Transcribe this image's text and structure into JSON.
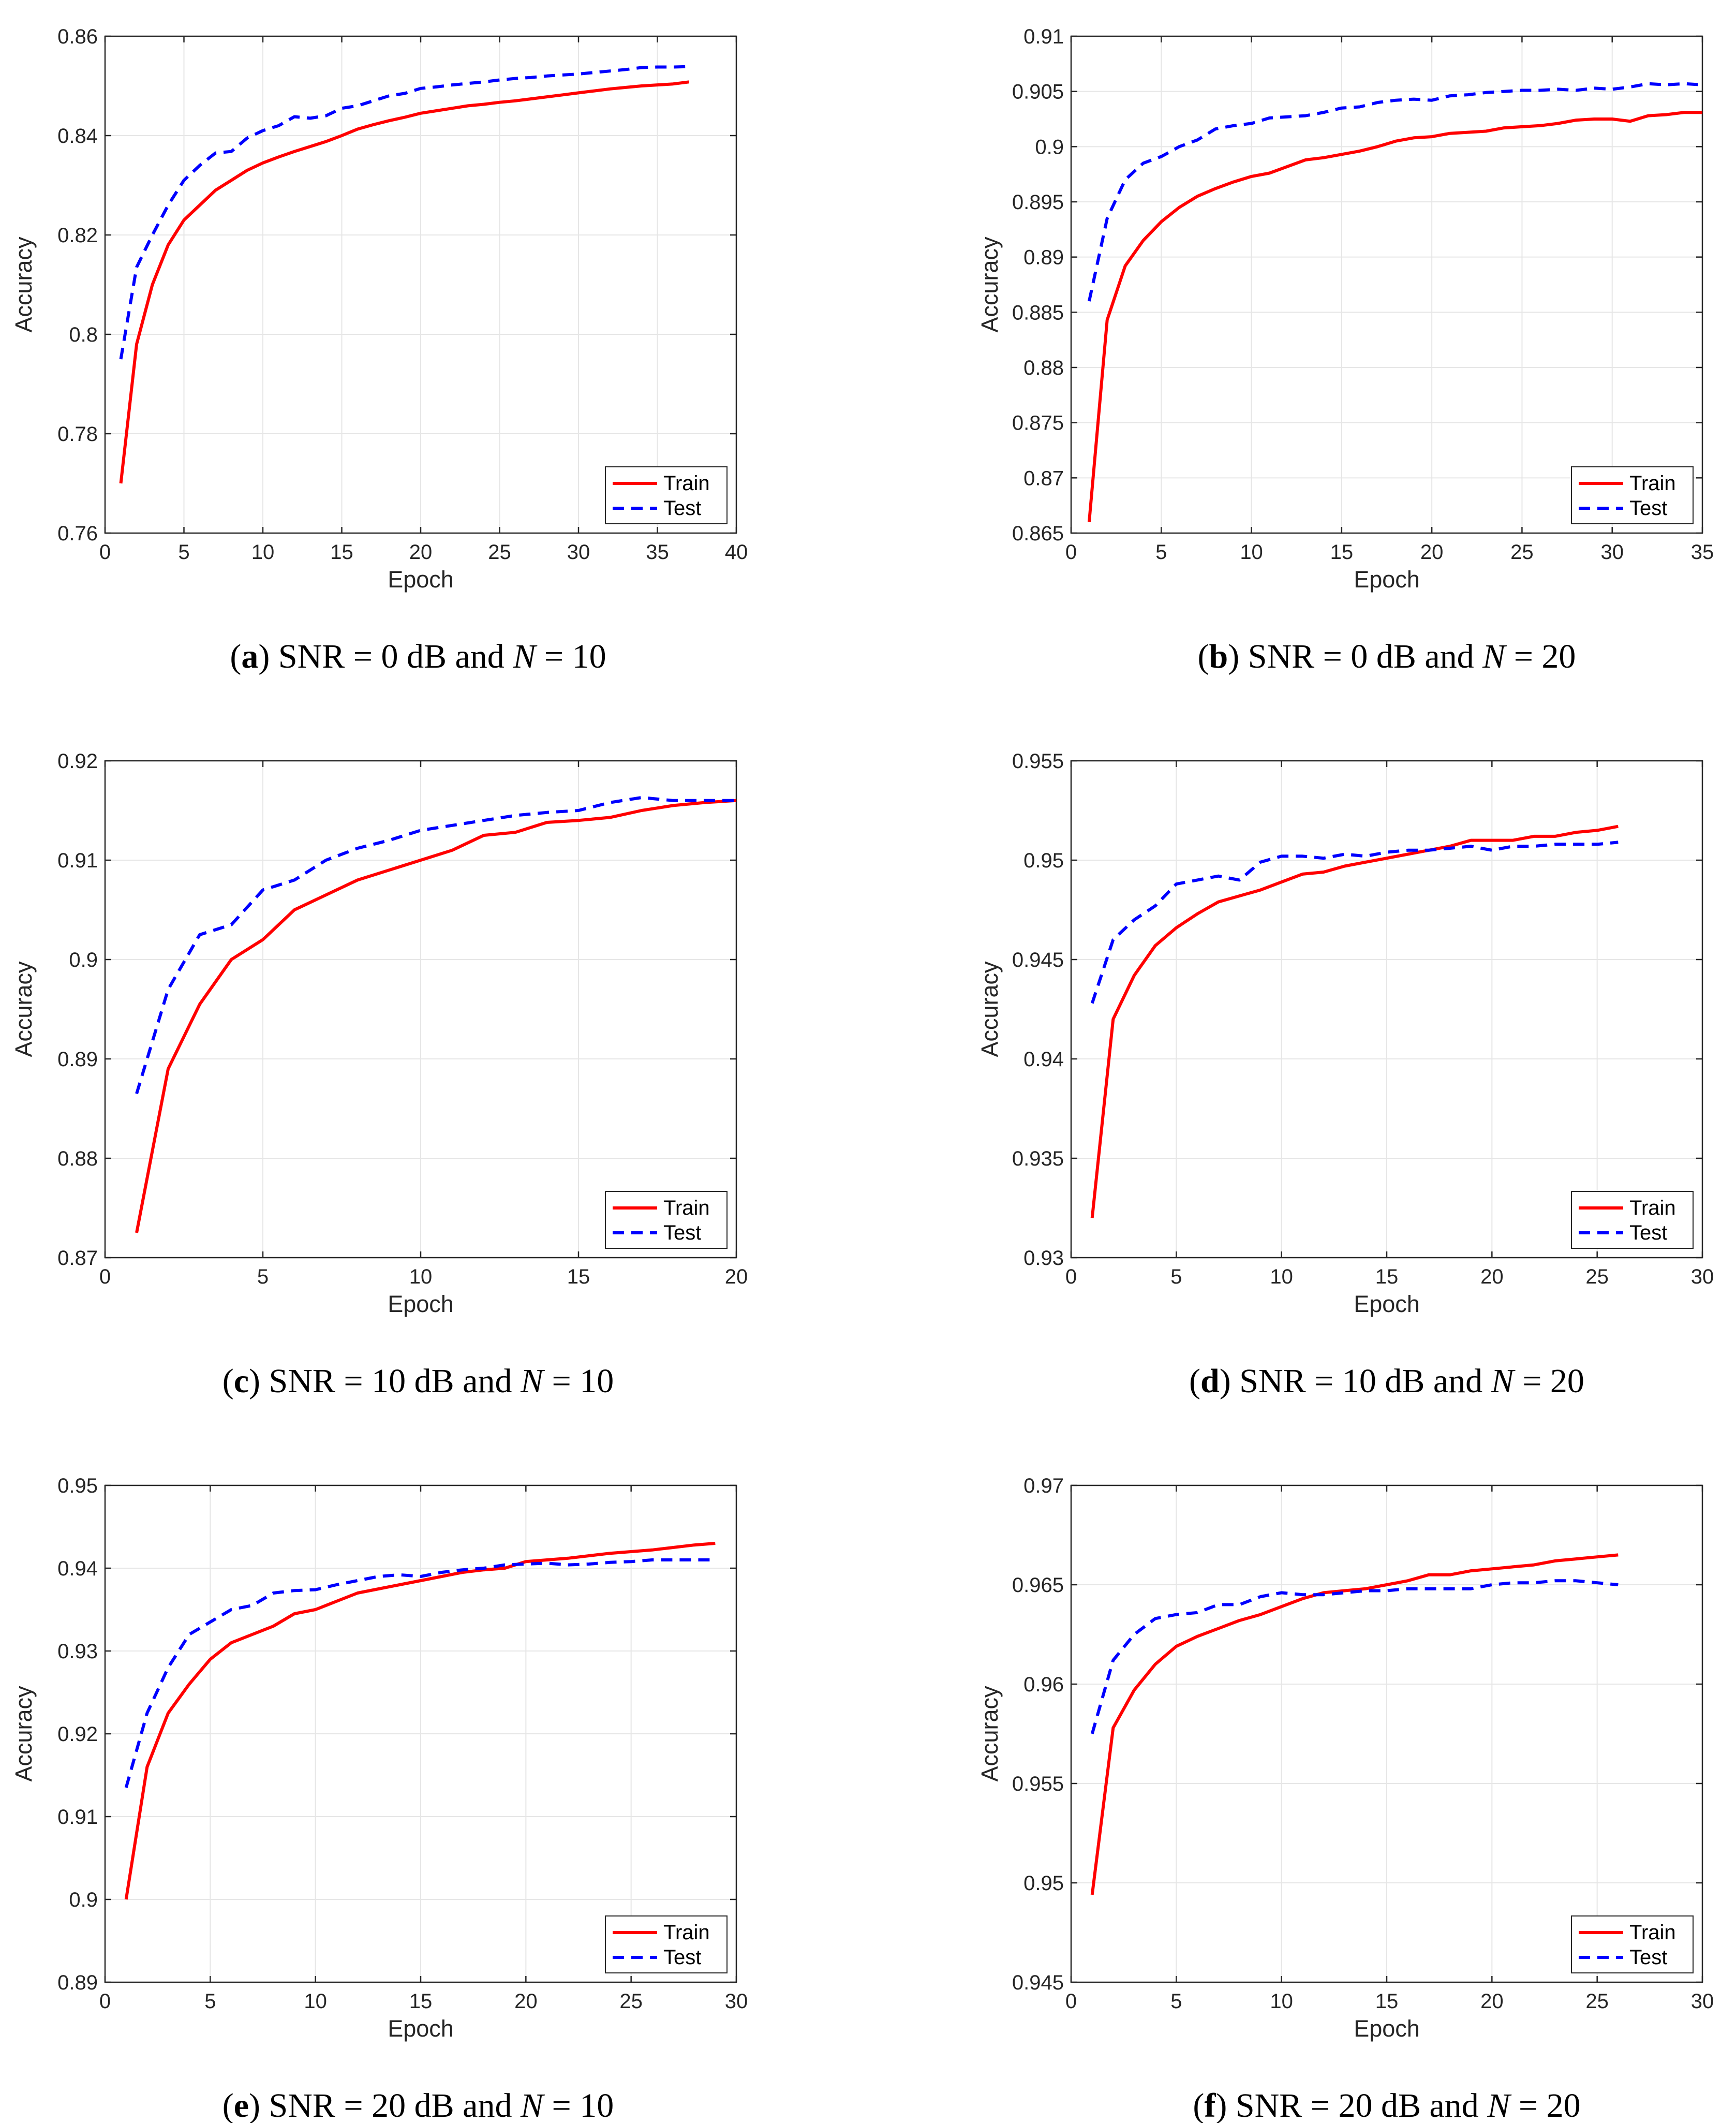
{
  "legend": {
    "train": "Train",
    "test": "Test"
  },
  "colors": {
    "train": "#ff0000",
    "test": "#0000ff"
  },
  "chart_data": [
    {
      "type": "line",
      "caption": {
        "letter": "a",
        "prefix": "SNR = 0 dB and ",
        "var": "N",
        "suffix": " = 10"
      },
      "xlabel": "Epoch",
      "ylabel": "Accuracy",
      "xlim": [
        0,
        40
      ],
      "ylim": [
        0.76,
        0.86
      ],
      "xticks": [
        0,
        5,
        10,
        15,
        20,
        25,
        30,
        35,
        40
      ],
      "yticks": [
        0.76,
        0.78,
        0.8,
        0.82,
        0.84,
        0.86
      ],
      "yticklabels": [
        "0.76",
        "0.78",
        "0.8",
        "0.82",
        "0.84",
        "0.86"
      ],
      "grid": true,
      "legend_position": "bottom-right",
      "series": [
        {
          "name": "Train",
          "x": [
            1,
            2,
            3,
            4,
            5,
            6,
            7,
            8,
            9,
            10,
            11,
            12,
            13,
            14,
            15,
            16,
            17,
            18,
            19,
            20,
            21,
            22,
            23,
            24,
            25,
            26,
            27,
            28,
            29,
            30,
            31,
            32,
            33,
            34,
            35,
            36,
            37
          ],
          "values": [
            0.77,
            0.798,
            0.81,
            0.818,
            0.823,
            0.826,
            0.829,
            0.831,
            0.833,
            0.8345,
            0.8357,
            0.8368,
            0.8378,
            0.8388,
            0.84,
            0.8413,
            0.8422,
            0.843,
            0.8437,
            0.8445,
            0.845,
            0.8455,
            0.846,
            0.8463,
            0.8467,
            0.847,
            0.8474,
            0.8478,
            0.8482,
            0.8486,
            0.849,
            0.8494,
            0.8497,
            0.85,
            0.8502,
            0.8504,
            0.8508
          ]
        },
        {
          "name": "Test",
          "x": [
            1,
            2,
            3,
            4,
            5,
            6,
            7,
            8,
            9,
            10,
            11,
            12,
            13,
            14,
            15,
            16,
            17,
            18,
            19,
            20,
            21,
            22,
            23,
            24,
            25,
            26,
            27,
            28,
            29,
            30,
            31,
            32,
            33,
            34,
            35,
            36,
            37
          ],
          "values": [
            0.795,
            0.8135,
            0.82,
            0.826,
            0.831,
            0.834,
            0.8365,
            0.8368,
            0.8395,
            0.841,
            0.842,
            0.8438,
            0.8435,
            0.844,
            0.8455,
            0.846,
            0.847,
            0.848,
            0.8485,
            0.8495,
            0.8498,
            0.8502,
            0.8505,
            0.8508,
            0.8512,
            0.8515,
            0.8517,
            0.852,
            0.8522,
            0.8524,
            0.8527,
            0.853,
            0.8533,
            0.8537,
            0.8538,
            0.8538,
            0.8539
          ]
        }
      ]
    },
    {
      "type": "line",
      "caption": {
        "letter": "b",
        "prefix": "SNR = 0 dB and ",
        "var": "N",
        "suffix": " = 20"
      },
      "xlabel": "Epoch",
      "ylabel": "Accuracy",
      "xlim": [
        0,
        35
      ],
      "ylim": [
        0.865,
        0.91
      ],
      "xticks": [
        0,
        5,
        10,
        15,
        20,
        25,
        30,
        35
      ],
      "yticks": [
        0.865,
        0.87,
        0.875,
        0.88,
        0.885,
        0.89,
        0.895,
        0.9,
        0.905,
        0.91
      ],
      "yticklabels": [
        "0.865",
        "0.87",
        "0.875",
        "0.88",
        "0.885",
        "0.89",
        "0.895",
        "0.9",
        "0.905",
        "0.91"
      ],
      "grid": true,
      "legend_position": "bottom-right",
      "series": [
        {
          "name": "Train",
          "x": [
            1,
            2,
            3,
            4,
            5,
            6,
            7,
            8,
            9,
            10,
            11,
            12,
            13,
            14,
            15,
            16,
            17,
            18,
            19,
            20,
            21,
            22,
            23,
            24,
            25,
            26,
            27,
            28,
            29,
            30,
            31,
            32,
            33,
            34,
            35
          ],
          "values": [
            0.866,
            0.8843,
            0.8892,
            0.8915,
            0.8932,
            0.8945,
            0.8955,
            0.8962,
            0.8968,
            0.8973,
            0.8976,
            0.8982,
            0.8988,
            0.899,
            0.8993,
            0.8996,
            0.9,
            0.9005,
            0.9008,
            0.9009,
            0.9012,
            0.9013,
            0.9014,
            0.9017,
            0.9018,
            0.9019,
            0.9021,
            0.9024,
            0.9025,
            0.9025,
            0.9023,
            0.9028,
            0.9029,
            0.9031,
            0.9031
          ]
        },
        {
          "name": "Test",
          "x": [
            1,
            2,
            3,
            4,
            5,
            6,
            7,
            8,
            9,
            10,
            11,
            12,
            13,
            14,
            15,
            16,
            17,
            18,
            19,
            20,
            21,
            22,
            23,
            24,
            25,
            26,
            27,
            28,
            29,
            30,
            31,
            32,
            33,
            34,
            35
          ],
          "values": [
            0.886,
            0.8935,
            0.897,
            0.8985,
            0.8991,
            0.9,
            0.9006,
            0.9016,
            0.9019,
            0.9021,
            0.9026,
            0.9027,
            0.9028,
            0.9031,
            0.9035,
            0.9036,
            0.904,
            0.9042,
            0.9043,
            0.9042,
            0.9046,
            0.9047,
            0.9049,
            0.905,
            0.9051,
            0.9051,
            0.9052,
            0.9051,
            0.9053,
            0.9052,
            0.9054,
            0.9057,
            0.9056,
            0.9057,
            0.9056
          ]
        }
      ]
    },
    {
      "type": "line",
      "caption": {
        "letter": "c",
        "prefix": "SNR = 10 dB and ",
        "var": "N",
        "suffix": " = 10"
      },
      "xlabel": "Epoch",
      "ylabel": "Accuracy",
      "xlim": [
        0,
        20
      ],
      "ylim": [
        0.87,
        0.92
      ],
      "xticks": [
        0,
        5,
        10,
        15,
        20
      ],
      "yticks": [
        0.87,
        0.88,
        0.89,
        0.9,
        0.91,
        0.92
      ],
      "yticklabels": [
        "0.87",
        "0.88",
        "0.89",
        "0.9",
        "0.91",
        "0.92"
      ],
      "grid": true,
      "legend_position": "bottom-right",
      "series": [
        {
          "name": "Train",
          "x": [
            1,
            2,
            3,
            4,
            5,
            6,
            7,
            8,
            9,
            10,
            11,
            12,
            13,
            14,
            15,
            16,
            17,
            18,
            19,
            20
          ],
          "values": [
            0.8725,
            0.889,
            0.8955,
            0.9,
            0.902,
            0.905,
            0.9065,
            0.908,
            0.909,
            0.91,
            0.911,
            0.9125,
            0.9128,
            0.9138,
            0.914,
            0.9143,
            0.915,
            0.9155,
            0.9158,
            0.916
          ]
        },
        {
          "name": "Test",
          "x": [
            1,
            2,
            3,
            4,
            5,
            6,
            7,
            8,
            9,
            10,
            11,
            12,
            13,
            14,
            15,
            16,
            17,
            18,
            19,
            20
          ],
          "values": [
            0.8865,
            0.897,
            0.9025,
            0.9035,
            0.907,
            0.908,
            0.91,
            0.9112,
            0.912,
            0.913,
            0.9135,
            0.914,
            0.9145,
            0.9148,
            0.915,
            0.9158,
            0.9163,
            0.916,
            0.916,
            0.916
          ]
        }
      ]
    },
    {
      "type": "line",
      "caption": {
        "letter": "d",
        "prefix": "SNR = 10 dB and ",
        "var": "N",
        "suffix": " = 20"
      },
      "xlabel": "Epoch",
      "ylabel": "Accuracy",
      "xlim": [
        0,
        30
      ],
      "ylim": [
        0.93,
        0.955
      ],
      "xticks": [
        0,
        5,
        10,
        15,
        20,
        25,
        30
      ],
      "yticks": [
        0.93,
        0.935,
        0.94,
        0.945,
        0.95,
        0.955
      ],
      "yticklabels": [
        "0.93",
        "0.935",
        "0.94",
        "0.945",
        "0.95",
        "0.955"
      ],
      "grid": true,
      "legend_position": "bottom-right",
      "series": [
        {
          "name": "Train",
          "x": [
            1,
            2,
            3,
            4,
            5,
            6,
            7,
            8,
            9,
            10,
            11,
            12,
            13,
            14,
            15,
            16,
            17,
            18,
            19,
            20,
            21,
            22,
            23,
            24,
            25,
            26
          ],
          "values": [
            0.932,
            0.942,
            0.9442,
            0.9457,
            0.9466,
            0.9473,
            0.9479,
            0.9482,
            0.9485,
            0.9489,
            0.9493,
            0.9494,
            0.9497,
            0.9499,
            0.9501,
            0.9503,
            0.9505,
            0.9507,
            0.951,
            0.951,
            0.951,
            0.9512,
            0.9512,
            0.9514,
            0.9515,
            0.9517
          ]
        },
        {
          "name": "Test",
          "x": [
            1,
            2,
            3,
            4,
            5,
            6,
            7,
            8,
            9,
            10,
            11,
            12,
            13,
            14,
            15,
            16,
            17,
            18,
            19,
            20,
            21,
            22,
            23,
            24,
            25,
            26
          ],
          "values": [
            0.9428,
            0.946,
            0.947,
            0.9477,
            0.9488,
            0.949,
            0.9492,
            0.949,
            0.9499,
            0.9502,
            0.9502,
            0.9501,
            0.9503,
            0.9502,
            0.9504,
            0.9505,
            0.9505,
            0.9506,
            0.9507,
            0.9505,
            0.9507,
            0.9507,
            0.9508,
            0.9508,
            0.9508,
            0.9509
          ]
        }
      ]
    },
    {
      "type": "line",
      "caption": {
        "letter": "e",
        "prefix": "SNR = 20 dB and ",
        "var": "N",
        "suffix": " = 10"
      },
      "xlabel": "Epoch",
      "ylabel": "Accuracy",
      "xlim": [
        0,
        30
      ],
      "ylim": [
        0.89,
        0.95
      ],
      "xticks": [
        0,
        5,
        10,
        15,
        20,
        25,
        30
      ],
      "yticks": [
        0.89,
        0.9,
        0.91,
        0.92,
        0.93,
        0.94,
        0.95
      ],
      "yticklabels": [
        "0.89",
        "0.9",
        "0.91",
        "0.92",
        "0.93",
        "0.94",
        "0.95"
      ],
      "grid": true,
      "legend_position": "bottom-right",
      "series": [
        {
          "name": "Train",
          "x": [
            1,
            2,
            3,
            4,
            5,
            6,
            7,
            8,
            9,
            10,
            11,
            12,
            13,
            14,
            15,
            16,
            17,
            18,
            19,
            20,
            21,
            22,
            23,
            24,
            25,
            26,
            27,
            28,
            29
          ],
          "values": [
            0.9,
            0.916,
            0.9225,
            0.926,
            0.929,
            0.931,
            0.932,
            0.933,
            0.9345,
            0.935,
            0.936,
            0.937,
            0.9375,
            0.938,
            0.9385,
            0.939,
            0.9395,
            0.9398,
            0.94,
            0.9408,
            0.941,
            0.9412,
            0.9415,
            0.9418,
            0.942,
            0.9422,
            0.9425,
            0.9428,
            0.943
          ]
        },
        {
          "name": "Test",
          "x": [
            1,
            2,
            3,
            4,
            5,
            6,
            7,
            8,
            9,
            10,
            11,
            12,
            13,
            14,
            15,
            16,
            17,
            18,
            19,
            20,
            21,
            22,
            23,
            24,
            25,
            26,
            27,
            28,
            29
          ],
          "values": [
            0.9135,
            0.9225,
            0.928,
            0.932,
            0.9335,
            0.935,
            0.9355,
            0.937,
            0.9373,
            0.9374,
            0.938,
            0.9385,
            0.939,
            0.9392,
            0.939,
            0.9395,
            0.9398,
            0.94,
            0.9404,
            0.9405,
            0.9406,
            0.9404,
            0.9405,
            0.9407,
            0.9408,
            0.941,
            0.941,
            0.941,
            0.941
          ]
        }
      ]
    },
    {
      "type": "line",
      "caption": {
        "letter": "f",
        "prefix": "SNR = 20 dB and ",
        "var": "N",
        "suffix": " = 20"
      },
      "xlabel": "Epoch",
      "ylabel": "Accuracy",
      "xlim": [
        0,
        30
      ],
      "ylim": [
        0.945,
        0.97
      ],
      "xticks": [
        0,
        5,
        10,
        15,
        20,
        25,
        30
      ],
      "yticks": [
        0.945,
        0.95,
        0.955,
        0.96,
        0.965,
        0.97
      ],
      "yticklabels": [
        "0.945",
        "0.95",
        "0.955",
        "0.96",
        "0.965",
        "0.97"
      ],
      "grid": true,
      "legend_position": "bottom-right",
      "series": [
        {
          "name": "Train",
          "x": [
            1,
            2,
            3,
            4,
            5,
            6,
            7,
            8,
            9,
            10,
            11,
            12,
            13,
            14,
            15,
            16,
            17,
            18,
            19,
            20,
            21,
            22,
            23,
            24,
            25,
            26
          ],
          "values": [
            0.9494,
            0.9578,
            0.9597,
            0.961,
            0.9619,
            0.9624,
            0.9628,
            0.9632,
            0.9635,
            0.9639,
            0.9643,
            0.9646,
            0.9647,
            0.9648,
            0.965,
            0.9652,
            0.9655,
            0.9655,
            0.9657,
            0.9658,
            0.9659,
            0.966,
            0.9662,
            0.9663,
            0.9664,
            0.9665
          ]
        },
        {
          "name": "Test",
          "x": [
            1,
            2,
            3,
            4,
            5,
            6,
            7,
            8,
            9,
            10,
            11,
            12,
            13,
            14,
            15,
            16,
            17,
            18,
            19,
            20,
            21,
            22,
            23,
            24,
            25,
            26
          ],
          "values": [
            0.9575,
            0.9612,
            0.9625,
            0.9633,
            0.9635,
            0.9636,
            0.964,
            0.964,
            0.9644,
            0.9646,
            0.9645,
            0.9645,
            0.9646,
            0.9647,
            0.9647,
            0.9648,
            0.9648,
            0.9648,
            0.9648,
            0.965,
            0.9651,
            0.9651,
            0.9652,
            0.9652,
            0.9651,
            0.965
          ]
        }
      ]
    }
  ]
}
